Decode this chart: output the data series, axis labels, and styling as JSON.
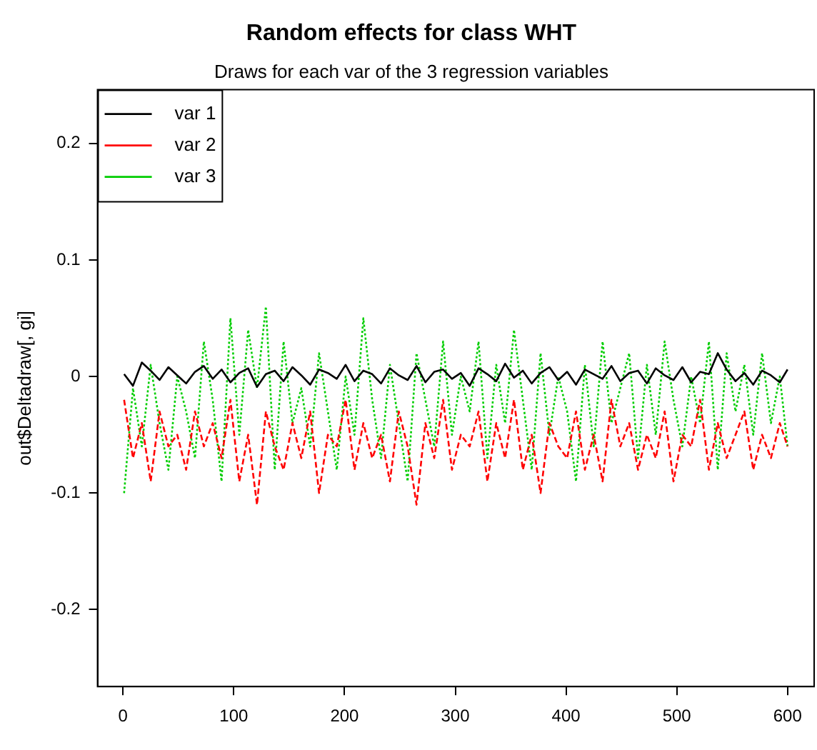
{
  "chart_data": {
    "type": "line",
    "title": "Random effects for class WHT",
    "subtitle": "Draws for each var of the 3 regression variables",
    "ylabel": "out$Deltadraw[, gi]",
    "x": [
      1,
      9,
      17,
      25,
      33,
      41,
      49,
      57,
      65,
      73,
      81,
      89,
      97,
      105,
      113,
      121,
      129,
      137,
      145,
      153,
      161,
      169,
      177,
      185,
      193,
      201,
      209,
      217,
      225,
      233,
      241,
      249,
      257,
      265,
      273,
      281,
      289,
      297,
      305,
      313,
      321,
      329,
      337,
      345,
      353,
      361,
      369,
      377,
      385,
      393,
      401,
      409,
      417,
      425,
      433,
      441,
      449,
      457,
      465,
      473,
      481,
      489,
      497,
      505,
      513,
      521,
      529,
      537,
      545,
      553,
      561,
      569,
      577,
      585,
      593,
      600
    ],
    "xlim": [
      -23,
      624
    ],
    "xticks": [
      0,
      100,
      200,
      300,
      400,
      500,
      600
    ],
    "ylim": [
      -0.266,
      0.246
    ],
    "yticks": [
      -0.2,
      -0.1,
      0.0,
      0.1,
      0.2
    ],
    "grid": false,
    "legend": "top left",
    "marker": "none",
    "series": [
      {
        "name": "var 1",
        "color": "#000000",
        "line_style": "solid",
        "values": [
          0.002,
          -0.008,
          0.012,
          0.005,
          -0.003,
          0.008,
          0.001,
          -0.006,
          0.004,
          0.009,
          -0.002,
          0.006,
          -0.005,
          0.003,
          0.007,
          -0.009,
          0.002,
          0.005,
          -0.004,
          0.008,
          0.001,
          -0.007,
          0.006,
          0.003,
          -0.002,
          0.01,
          -0.004,
          0.005,
          0.002,
          -0.006,
          0.007,
          0.001,
          -0.003,
          0.009,
          -0.005,
          0.004,
          0.006,
          -0.002,
          0.003,
          -0.008,
          0.007,
          0.002,
          -0.004,
          0.011,
          -0.001,
          0.005,
          -0.006,
          0.003,
          0.008,
          -0.003,
          0.004,
          -0.007,
          0.006,
          0.002,
          -0.002,
          0.009,
          -0.004,
          0.003,
          0.005,
          -0.006,
          0.007,
          0.001,
          -0.003,
          0.008,
          -0.005,
          0.004,
          0.002,
          0.02,
          0.006,
          -0.004,
          0.003,
          -0.007,
          0.005,
          0.001,
          -0.005,
          0.006
        ]
      },
      {
        "name": "var 2",
        "color": "#ff0000",
        "line_style": "dashed",
        "values": [
          -0.02,
          -0.07,
          -0.04,
          -0.09,
          -0.03,
          -0.06,
          -0.05,
          -0.08,
          -0.03,
          -0.06,
          -0.04,
          -0.07,
          -0.02,
          -0.09,
          -0.05,
          -0.11,
          -0.03,
          -0.06,
          -0.08,
          -0.04,
          -0.07,
          -0.03,
          -0.1,
          -0.05,
          -0.06,
          -0.02,
          -0.08,
          -0.04,
          -0.07,
          -0.05,
          -0.09,
          -0.03,
          -0.06,
          -0.11,
          -0.04,
          -0.07,
          -0.02,
          -0.08,
          -0.05,
          -0.06,
          -0.03,
          -0.09,
          -0.04,
          -0.07,
          -0.02,
          -0.08,
          -0.05,
          -0.1,
          -0.04,
          -0.06,
          -0.07,
          -0.03,
          -0.08,
          -0.05,
          -0.09,
          -0.02,
          -0.06,
          -0.04,
          -0.08,
          -0.05,
          -0.07,
          -0.03,
          -0.09,
          -0.05,
          -0.06,
          -0.02,
          -0.08,
          -0.04,
          -0.07,
          -0.05,
          -0.03,
          -0.08,
          -0.05,
          -0.07,
          -0.04,
          -0.06
        ]
      },
      {
        "name": "var 3",
        "color": "#00cd00",
        "line_style": "dotted",
        "values": [
          -0.1,
          -0.01,
          -0.06,
          0.01,
          -0.04,
          -0.08,
          0.0,
          -0.03,
          -0.07,
          0.03,
          -0.02,
          -0.09,
          0.05,
          -0.05,
          0.04,
          -0.01,
          0.06,
          -0.08,
          0.03,
          -0.04,
          -0.01,
          -0.06,
          0.02,
          -0.03,
          -0.08,
          0.0,
          -0.05,
          0.05,
          -0.02,
          -0.07,
          0.01,
          -0.04,
          -0.09,
          0.02,
          -0.02,
          -0.06,
          0.03,
          -0.05,
          0.0,
          -0.03,
          0.03,
          -0.07,
          0.01,
          -0.04,
          0.04,
          -0.02,
          -0.08,
          0.02,
          -0.05,
          0.0,
          -0.03,
          -0.09,
          0.01,
          -0.06,
          0.03,
          -0.04,
          -0.01,
          0.02,
          -0.07,
          0.01,
          -0.05,
          0.03,
          -0.02,
          -0.06,
          0.0,
          -0.04,
          0.03,
          -0.08,
          0.02,
          -0.03,
          0.01,
          -0.05,
          0.02,
          -0.04,
          0.0,
          -0.06
        ]
      }
    ]
  }
}
